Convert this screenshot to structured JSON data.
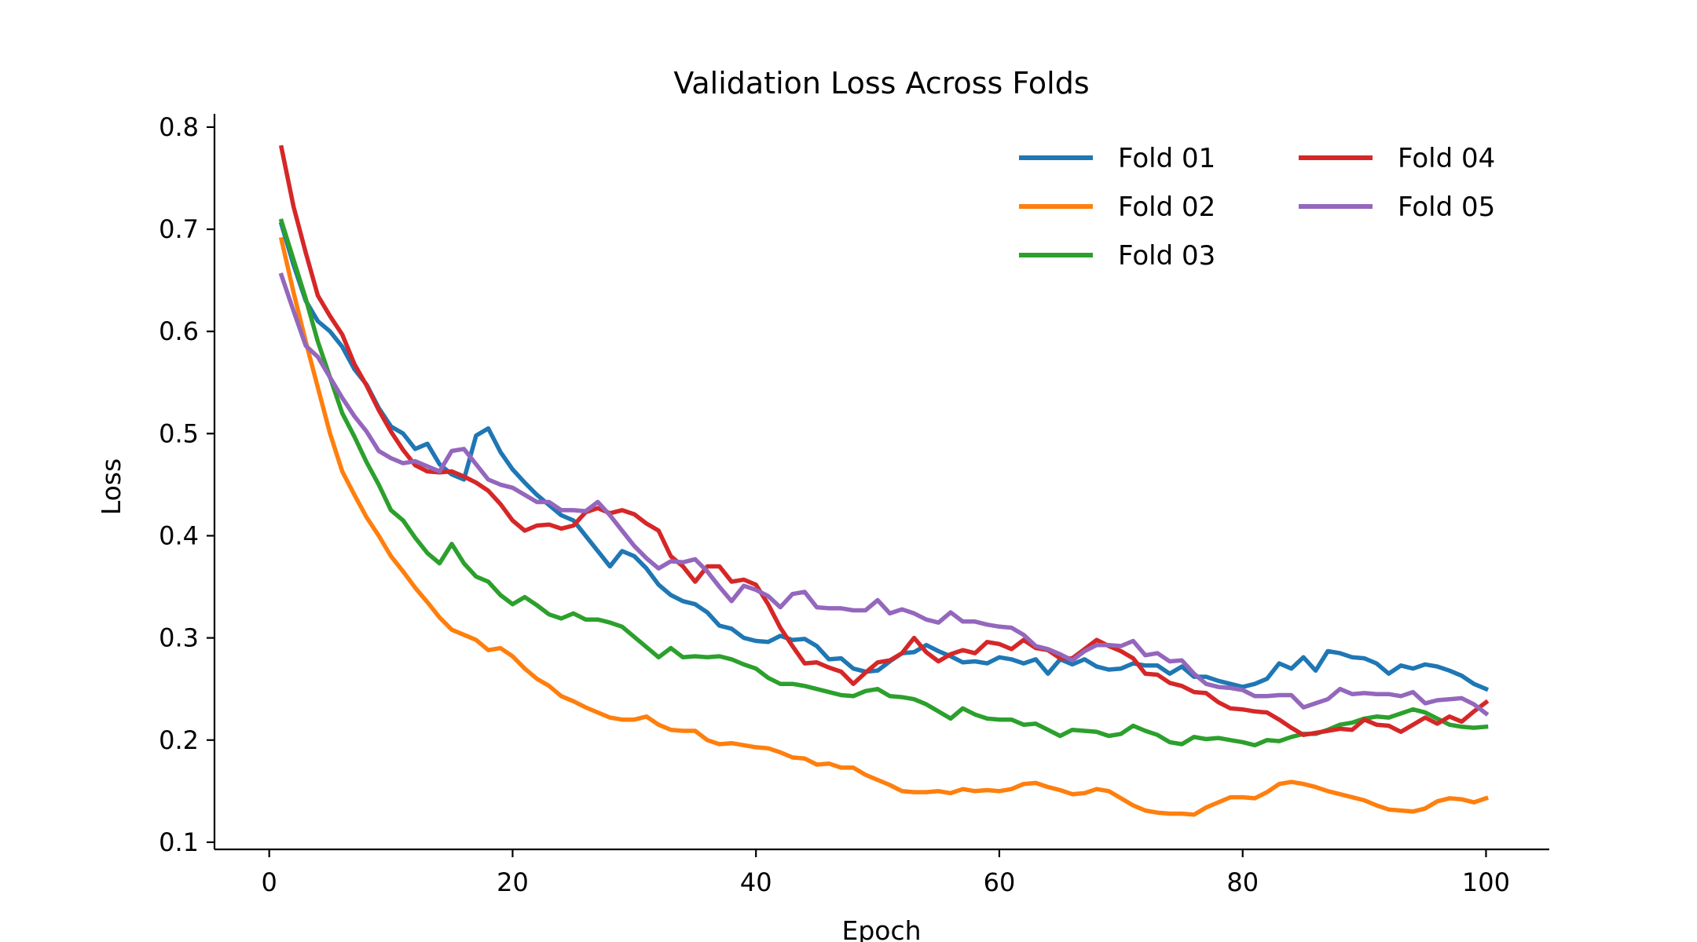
{
  "chart_data": {
    "type": "line",
    "title": "Validation Loss Across Folds",
    "xlabel": "Epoch",
    "ylabel": "Loss",
    "xlim": [
      -4.5,
      105.2
    ],
    "ylim": [
      0.093,
      0.813
    ],
    "xticks": [
      0,
      20,
      40,
      60,
      80,
      100
    ],
    "yticks": [
      0.1,
      0.2,
      0.3,
      0.4,
      0.5,
      0.6,
      0.7,
      0.8
    ],
    "xtick_labels": [
      "0",
      "20",
      "40",
      "60",
      "80",
      "100"
    ],
    "ytick_labels": [
      "0.1",
      "0.2",
      "0.3",
      "0.4",
      "0.5",
      "0.6",
      "0.7",
      "0.8"
    ],
    "grid": false,
    "legend": {
      "position": "top-right",
      "columns": 2
    },
    "series": [
      {
        "name": "Fold 01",
        "color": "#1f77b4",
        "x": [
          1,
          2,
          3,
          4,
          5,
          6,
          7,
          8,
          9,
          10,
          11,
          12,
          13,
          14,
          15,
          16,
          17,
          18,
          19,
          20,
          21,
          22,
          23,
          24,
          25,
          26,
          27,
          28,
          29,
          30,
          31,
          32,
          33,
          34,
          35,
          36,
          37,
          38,
          39,
          40,
          41,
          42,
          43,
          44,
          45,
          46,
          47,
          48,
          49,
          50,
          51,
          52,
          53,
          54,
          55,
          56,
          57,
          58,
          59,
          60,
          61,
          62,
          63,
          64,
          65,
          66,
          67,
          68,
          69,
          70,
          71,
          72,
          73,
          74,
          75,
          76,
          77,
          78,
          79,
          80,
          81,
          82,
          83,
          84,
          85,
          86,
          87,
          88,
          89,
          90,
          91,
          92,
          93,
          94,
          95,
          96,
          97,
          98,
          99,
          100
        ],
        "values": [
          0.705,
          0.665,
          0.63,
          0.61,
          0.6,
          0.585,
          0.563,
          0.548,
          0.525,
          0.507,
          0.5,
          0.485,
          0.49,
          0.47,
          0.46,
          0.455,
          0.498,
          0.505,
          0.482,
          0.465,
          0.452,
          0.44,
          0.43,
          0.42,
          0.415,
          0.4,
          0.385,
          0.37,
          0.385,
          0.38,
          0.368,
          0.352,
          0.342,
          0.336,
          0.333,
          0.325,
          0.312,
          0.309,
          0.3,
          0.297,
          0.296,
          0.302,
          0.298,
          0.299,
          0.292,
          0.279,
          0.28,
          0.27,
          0.267,
          0.268,
          0.277,
          0.285,
          0.286,
          0.293,
          0.287,
          0.282,
          0.276,
          0.277,
          0.275,
          0.281,
          0.279,
          0.275,
          0.279,
          0.265,
          0.279,
          0.274,
          0.279,
          0.272,
          0.269,
          0.27,
          0.275,
          0.273,
          0.273,
          0.265,
          0.272,
          0.262,
          0.262,
          0.258,
          0.255,
          0.252,
          0.255,
          0.26,
          0.275,
          0.27,
          0.281,
          0.268,
          0.287,
          0.285,
          0.281,
          0.28,
          0.275,
          0.265,
          0.273,
          0.27,
          0.274,
          0.272,
          0.268,
          0.263,
          0.255,
          0.25
        ]
      },
      {
        "name": "Fold 02",
        "color": "#ff7f0e",
        "x": [
          1,
          2,
          3,
          4,
          5,
          6,
          7,
          8,
          9,
          10,
          11,
          12,
          13,
          14,
          15,
          16,
          17,
          18,
          19,
          20,
          21,
          22,
          23,
          24,
          25,
          26,
          27,
          28,
          29,
          30,
          31,
          32,
          33,
          34,
          35,
          36,
          37,
          38,
          39,
          40,
          41,
          42,
          43,
          44,
          45,
          46,
          47,
          48,
          49,
          50,
          51,
          52,
          53,
          54,
          55,
          56,
          57,
          58,
          59,
          60,
          61,
          62,
          63,
          64,
          65,
          66,
          67,
          68,
          69,
          70,
          71,
          72,
          73,
          74,
          75,
          76,
          77,
          78,
          79,
          80,
          81,
          82,
          83,
          84,
          85,
          86,
          87,
          88,
          89,
          90,
          91,
          92,
          93,
          94,
          95,
          96,
          97,
          98,
          99,
          100
        ],
        "values": [
          0.69,
          0.638,
          0.59,
          0.545,
          0.5,
          0.463,
          0.44,
          0.418,
          0.4,
          0.38,
          0.365,
          0.349,
          0.335,
          0.32,
          0.308,
          0.303,
          0.298,
          0.288,
          0.29,
          0.282,
          0.27,
          0.26,
          0.253,
          0.243,
          0.238,
          0.232,
          0.227,
          0.222,
          0.22,
          0.22,
          0.223,
          0.215,
          0.21,
          0.209,
          0.209,
          0.2,
          0.196,
          0.197,
          0.195,
          0.193,
          0.192,
          0.188,
          0.183,
          0.182,
          0.176,
          0.177,
          0.173,
          0.173,
          0.166,
          0.161,
          0.156,
          0.15,
          0.149,
          0.149,
          0.15,
          0.148,
          0.152,
          0.15,
          0.151,
          0.15,
          0.152,
          0.157,
          0.158,
          0.154,
          0.151,
          0.147,
          0.148,
          0.152,
          0.15,
          0.143,
          0.136,
          0.131,
          0.129,
          0.128,
          0.128,
          0.127,
          0.134,
          0.139,
          0.144,
          0.144,
          0.143,
          0.149,
          0.157,
          0.159,
          0.157,
          0.154,
          0.15,
          0.147,
          0.144,
          0.141,
          0.136,
          0.132,
          0.131,
          0.13,
          0.133,
          0.14,
          0.143,
          0.142,
          0.139,
          0.143
        ]
      },
      {
        "name": "Fold 03",
        "color": "#2ca02c",
        "x": [
          1,
          2,
          3,
          4,
          5,
          6,
          7,
          8,
          9,
          10,
          11,
          12,
          13,
          14,
          15,
          16,
          17,
          18,
          19,
          20,
          21,
          22,
          23,
          24,
          25,
          26,
          27,
          28,
          29,
          30,
          31,
          32,
          33,
          34,
          35,
          36,
          37,
          38,
          39,
          40,
          41,
          42,
          43,
          44,
          45,
          46,
          47,
          48,
          49,
          50,
          51,
          52,
          53,
          54,
          55,
          56,
          57,
          58,
          59,
          60,
          61,
          62,
          63,
          64,
          65,
          66,
          67,
          68,
          69,
          70,
          71,
          72,
          73,
          74,
          75,
          76,
          77,
          78,
          79,
          80,
          81,
          82,
          83,
          84,
          85,
          86,
          87,
          88,
          89,
          90,
          91,
          92,
          93,
          94,
          95,
          96,
          97,
          98,
          99,
          100
        ],
        "values": [
          0.708,
          0.67,
          0.632,
          0.59,
          0.555,
          0.52,
          0.497,
          0.472,
          0.45,
          0.425,
          0.415,
          0.398,
          0.383,
          0.373,
          0.392,
          0.373,
          0.36,
          0.355,
          0.342,
          0.333,
          0.34,
          0.332,
          0.323,
          0.319,
          0.324,
          0.318,
          0.318,
          0.315,
          0.311,
          0.301,
          0.291,
          0.281,
          0.29,
          0.281,
          0.282,
          0.281,
          0.282,
          0.279,
          0.274,
          0.27,
          0.261,
          0.255,
          0.255,
          0.253,
          0.25,
          0.247,
          0.244,
          0.243,
          0.248,
          0.25,
          0.243,
          0.242,
          0.24,
          0.235,
          0.228,
          0.221,
          0.231,
          0.225,
          0.221,
          0.22,
          0.22,
          0.215,
          0.216,
          0.21,
          0.204,
          0.21,
          0.209,
          0.208,
          0.204,
          0.206,
          0.214,
          0.209,
          0.205,
          0.198,
          0.196,
          0.203,
          0.201,
          0.202,
          0.2,
          0.198,
          0.195,
          0.2,
          0.199,
          0.203,
          0.206,
          0.206,
          0.21,
          0.215,
          0.217,
          0.221,
          0.223,
          0.222,
          0.226,
          0.23,
          0.227,
          0.221,
          0.215,
          0.213,
          0.212,
          0.213
        ]
      },
      {
        "name": "Fold 04",
        "color": "#d62728",
        "x": [
          1,
          2,
          3,
          4,
          5,
          6,
          7,
          8,
          9,
          10,
          11,
          12,
          13,
          14,
          15,
          16,
          17,
          18,
          19,
          20,
          21,
          22,
          23,
          24,
          25,
          26,
          27,
          28,
          29,
          30,
          31,
          32,
          33,
          34,
          35,
          36,
          37,
          38,
          39,
          40,
          41,
          42,
          43,
          44,
          45,
          46,
          47,
          48,
          49,
          50,
          51,
          52,
          53,
          54,
          55,
          56,
          57,
          58,
          59,
          60,
          61,
          62,
          63,
          64,
          65,
          66,
          67,
          68,
          69,
          70,
          71,
          72,
          73,
          74,
          75,
          76,
          77,
          78,
          79,
          80,
          81,
          82,
          83,
          84,
          85,
          86,
          87,
          88,
          89,
          90,
          91,
          92,
          93,
          94,
          95,
          96,
          97,
          98,
          99,
          100
        ],
        "values": [
          0.78,
          0.722,
          0.677,
          0.635,
          0.615,
          0.597,
          0.568,
          0.547,
          0.523,
          0.502,
          0.484,
          0.469,
          0.463,
          0.462,
          0.463,
          0.458,
          0.452,
          0.444,
          0.431,
          0.415,
          0.405,
          0.41,
          0.411,
          0.407,
          0.41,
          0.423,
          0.427,
          0.422,
          0.425,
          0.421,
          0.412,
          0.405,
          0.38,
          0.37,
          0.355,
          0.37,
          0.37,
          0.355,
          0.357,
          0.352,
          0.333,
          0.31,
          0.292,
          0.275,
          0.276,
          0.271,
          0.267,
          0.255,
          0.266,
          0.276,
          0.278,
          0.285,
          0.3,
          0.286,
          0.277,
          0.284,
          0.288,
          0.285,
          0.296,
          0.294,
          0.289,
          0.298,
          0.29,
          0.288,
          0.28,
          0.28,
          0.289,
          0.298,
          0.292,
          0.287,
          0.28,
          0.265,
          0.264,
          0.256,
          0.253,
          0.247,
          0.246,
          0.237,
          0.231,
          0.23,
          0.228,
          0.227,
          0.22,
          0.212,
          0.205,
          0.207,
          0.209,
          0.211,
          0.21,
          0.22,
          0.215,
          0.214,
          0.208,
          0.215,
          0.222,
          0.216,
          0.223,
          0.218,
          0.228,
          0.237
        ]
      },
      {
        "name": "Fold 05",
        "color": "#9467bd",
        "x": [
          1,
          2,
          3,
          4,
          5,
          6,
          7,
          8,
          9,
          10,
          11,
          12,
          13,
          14,
          15,
          16,
          17,
          18,
          19,
          20,
          21,
          22,
          23,
          24,
          25,
          26,
          27,
          28,
          29,
          30,
          31,
          32,
          33,
          34,
          35,
          36,
          37,
          38,
          39,
          40,
          41,
          42,
          43,
          44,
          45,
          46,
          47,
          48,
          49,
          50,
          51,
          52,
          53,
          54,
          55,
          56,
          57,
          58,
          59,
          60,
          61,
          62,
          63,
          64,
          65,
          66,
          67,
          68,
          69,
          70,
          71,
          72,
          73,
          74,
          75,
          76,
          77,
          78,
          79,
          80,
          81,
          82,
          83,
          84,
          85,
          86,
          87,
          88,
          89,
          90,
          91,
          92,
          93,
          94,
          95,
          96,
          97,
          98,
          99,
          100
        ],
        "values": [
          0.655,
          0.62,
          0.586,
          0.575,
          0.555,
          0.535,
          0.517,
          0.502,
          0.483,
          0.476,
          0.471,
          0.473,
          0.468,
          0.463,
          0.483,
          0.485,
          0.47,
          0.455,
          0.45,
          0.447,
          0.44,
          0.433,
          0.433,
          0.425,
          0.425,
          0.424,
          0.433,
          0.42,
          0.405,
          0.39,
          0.378,
          0.368,
          0.375,
          0.374,
          0.377,
          0.365,
          0.35,
          0.336,
          0.351,
          0.347,
          0.341,
          0.33,
          0.343,
          0.345,
          0.33,
          0.329,
          0.329,
          0.327,
          0.327,
          0.337,
          0.324,
          0.328,
          0.324,
          0.318,
          0.315,
          0.325,
          0.316,
          0.316,
          0.313,
          0.311,
          0.31,
          0.303,
          0.292,
          0.289,
          0.284,
          0.278,
          0.287,
          0.293,
          0.293,
          0.292,
          0.297,
          0.283,
          0.285,
          0.277,
          0.278,
          0.265,
          0.255,
          0.252,
          0.251,
          0.249,
          0.243,
          0.243,
          0.244,
          0.244,
          0.232,
          0.236,
          0.24,
          0.25,
          0.245,
          0.246,
          0.245,
          0.245,
          0.243,
          0.247,
          0.236,
          0.239,
          0.24,
          0.241,
          0.235,
          0.226
        ]
      }
    ]
  }
}
